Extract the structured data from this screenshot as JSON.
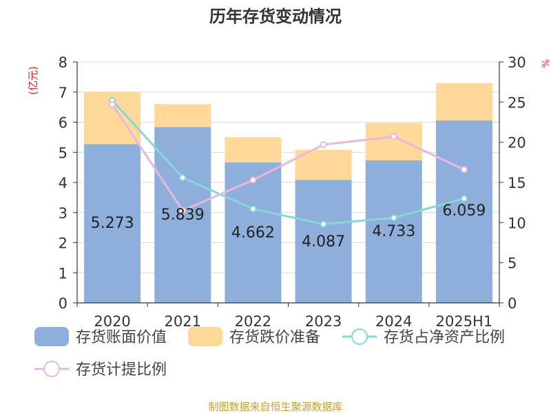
{
  "chart_data": {
    "type": "bar",
    "title": "历年存货变动情况",
    "categories": [
      "2020",
      "2021",
      "2022",
      "2023",
      "2024",
      "2025H1"
    ],
    "series": [
      {
        "name": "存货账面价值",
        "kind": "bar",
        "axis": "left",
        "values": [
          5.273,
          5.839,
          4.662,
          4.087,
          4.733,
          6.059
        ]
      },
      {
        "name": "存货跌价准备",
        "kind": "bar",
        "axis": "left",
        "values": [
          1.73,
          0.76,
          0.84,
          1.0,
          1.24,
          1.24
        ]
      },
      {
        "name": "存货占净资产比例",
        "kind": "line",
        "axis": "right",
        "values": [
          25.2,
          15.6,
          11.7,
          9.8,
          10.6,
          13.0
        ]
      },
      {
        "name": "存货计提比例",
        "kind": "line",
        "axis": "right",
        "values": [
          24.7,
          11.5,
          15.3,
          19.7,
          20.7,
          16.6
        ]
      }
    ],
    "data_labels": [
      "5.273",
      "5.839",
      "4.662",
      "4.087",
      "4.733",
      "6.059"
    ],
    "ylabel": "(亿元)",
    "y2label": "%",
    "ylim": [
      0,
      8
    ],
    "y2lim": [
      0,
      30
    ],
    "yticks": [
      "0",
      "1",
      "2",
      "3",
      "4",
      "5",
      "6",
      "7",
      "8"
    ],
    "y2ticks": [
      "0",
      "5",
      "10",
      "15",
      "20",
      "25",
      "30"
    ],
    "grid": true,
    "legend": "bottom",
    "colors": {
      "bar1": "#8eaedc",
      "bar2": "#ffd89a",
      "line1": "#86d8d6",
      "line2": "#e8b8dc",
      "unit": "#e02020",
      "source": "#c8a030"
    }
  },
  "source": "制图数据来自恒生聚源数据库"
}
